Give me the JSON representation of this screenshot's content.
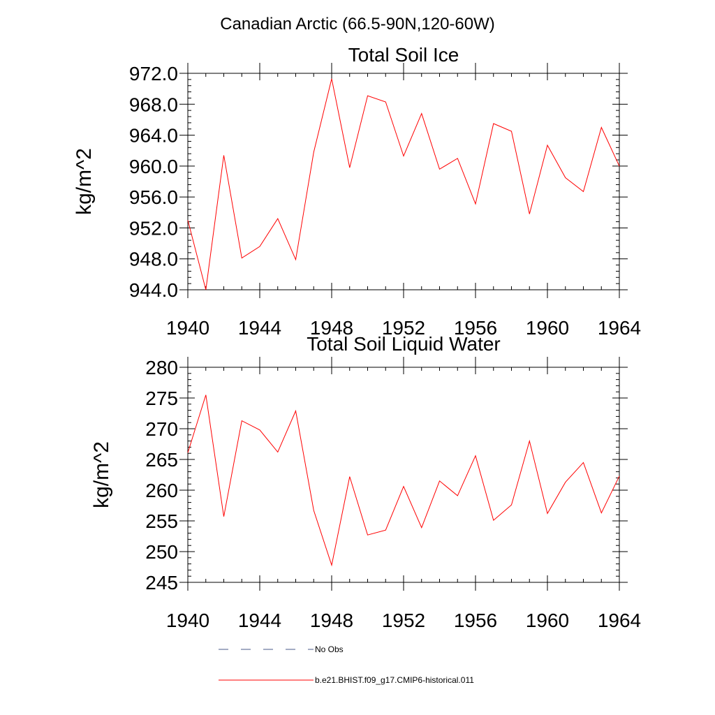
{
  "figure_title": "Canadian Arctic (66.5-90N,120-60W)",
  "colors": {
    "model_line": "#ff0000",
    "obs_line": "#4a5a8a",
    "axis": "#000000"
  },
  "chart_data": [
    {
      "type": "line",
      "title": "Total Soil Ice",
      "xlabel": "",
      "ylabel": "kg/m^2",
      "xlim": [
        1940,
        1964
      ],
      "ylim": [
        944,
        972
      ],
      "xticks": [
        1940,
        1944,
        1948,
        1952,
        1956,
        1960,
        1964
      ],
      "yticks": [
        944,
        948,
        952,
        956,
        960,
        964,
        968,
        972
      ],
      "ytick_labels": [
        "944.0",
        "948.0",
        "952.0",
        "956.0",
        "960.0",
        "964.0",
        "968.0",
        "972.0"
      ],
      "x": [
        1940,
        1941,
        1942,
        1943,
        1944,
        1945,
        1946,
        1947,
        1948,
        1949,
        1950,
        1951,
        1952,
        1953,
        1954,
        1955,
        1956,
        1957,
        1958,
        1959,
        1960,
        1961,
        1962,
        1963,
        1964
      ],
      "series": [
        {
          "name": "b.e21.BHIST.f09_g17.CMIP6-historical.011",
          "values": [
            953.0,
            944.0,
            961.4,
            948.1,
            949.6,
            953.2,
            947.9,
            961.8,
            971.3,
            959.8,
            969.1,
            968.3,
            961.3,
            966.8,
            959.6,
            961.0,
            955.1,
            965.5,
            964.5,
            953.8,
            962.7,
            958.5,
            956.7,
            965.0,
            960.0
          ]
        }
      ]
    },
    {
      "type": "line",
      "title": "Total Soil Liquid Water",
      "xlabel": "",
      "ylabel": "kg/m^2",
      "xlim": [
        1940,
        1964
      ],
      "ylim": [
        245,
        280
      ],
      "xticks": [
        1940,
        1944,
        1948,
        1952,
        1956,
        1960,
        1964
      ],
      "yticks": [
        245,
        250,
        255,
        260,
        265,
        270,
        275,
        280
      ],
      "ytick_labels": [
        "245",
        "250",
        "255",
        "260",
        "265",
        "270",
        "275",
        "280"
      ],
      "x": [
        1940,
        1941,
        1942,
        1943,
        1944,
        1945,
        1946,
        1947,
        1948,
        1949,
        1950,
        1951,
        1952,
        1953,
        1954,
        1955,
        1956,
        1957,
        1958,
        1959,
        1960,
        1961,
        1962,
        1963,
        1964
      ],
      "series": [
        {
          "name": "b.e21.BHIST.f09_g17.CMIP6-historical.011",
          "values": [
            266.1,
            275.5,
            255.7,
            271.3,
            269.8,
            266.2,
            272.9,
            256.7,
            247.8,
            262.2,
            252.7,
            253.5,
            260.6,
            253.9,
            261.5,
            259.1,
            265.6,
            255.1,
            257.6,
            268.0,
            256.2,
            261.3,
            264.5,
            256.3,
            262.3
          ]
        }
      ]
    }
  ],
  "legend": {
    "placement": "bottom",
    "entries": [
      {
        "label": "No Obs",
        "style": "dashed",
        "color": "#4a5a8a"
      },
      {
        "label": "b.e21.BHIST.f09_g17.CMIP6-historical.011",
        "style": "solid",
        "color": "#ff0000"
      }
    ]
  }
}
